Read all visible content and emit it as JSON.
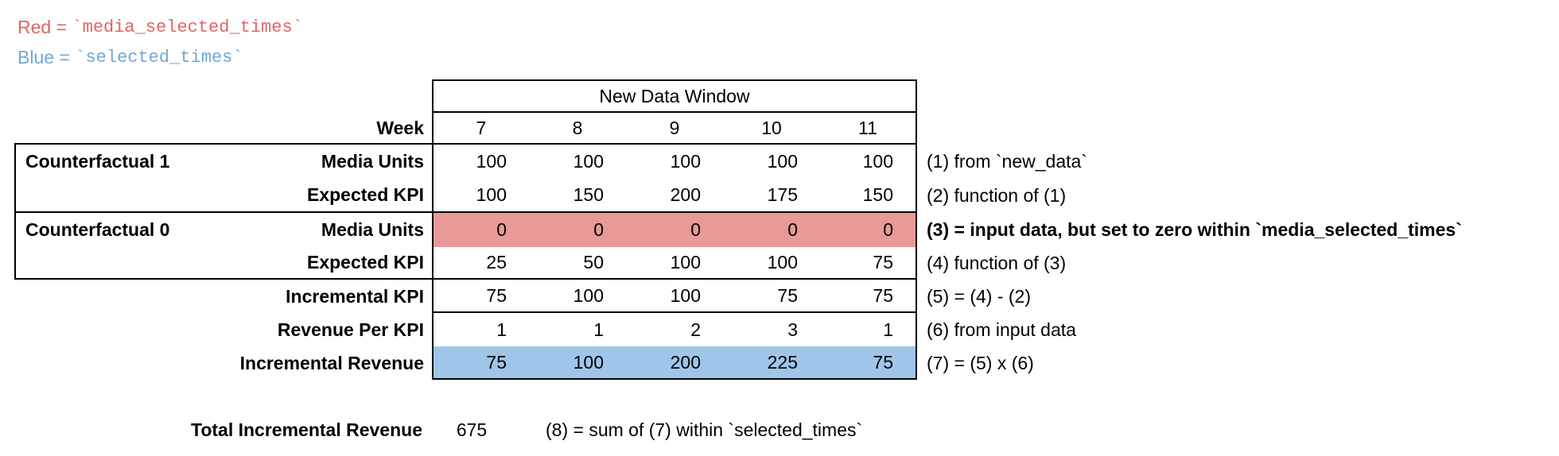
{
  "legend": {
    "red": {
      "name": "Red",
      "equals": " = ",
      "code": "`media_selected_times`"
    },
    "blue": {
      "name": "Blue",
      "equals": " = ",
      "code": "`selected_times`"
    }
  },
  "colors": {
    "red_row_bg": "#ea9999",
    "blue_row_bg": "#9fc5e8",
    "red_text": "#e06666",
    "blue_text": "#6fa8dc"
  },
  "table": {
    "window_header": "New Data Window",
    "week_row": {
      "label": "Week",
      "weeks": [
        "7",
        "8",
        "9",
        "10",
        "11"
      ]
    },
    "rows": [
      {
        "group": "Counterfactual 1",
        "label": "Media Units",
        "values": [
          "100",
          "100",
          "100",
          "100",
          "100"
        ],
        "note": "(1) from `new_data`"
      },
      {
        "group": "",
        "label": "Expected KPI",
        "values": [
          "100",
          "150",
          "200",
          "175",
          "150"
        ],
        "note": "(2) function of (1)"
      },
      {
        "group": "Counterfactual 0",
        "label": "Media Units",
        "values": [
          "0",
          "0",
          "0",
          "0",
          "0"
        ],
        "note": "(3) = input data, but set to zero within `media_selected_times`"
      },
      {
        "group": "",
        "label": "Expected KPI",
        "values": [
          "25",
          "50",
          "100",
          "100",
          "75"
        ],
        "note": "(4) function of (3)"
      },
      {
        "group": "",
        "label": "Incremental KPI",
        "values": [
          "75",
          "100",
          "100",
          "75",
          "75"
        ],
        "note": "(5) = (4) - (2)"
      },
      {
        "group": "",
        "label": "Revenue Per KPI",
        "values": [
          "1",
          "1",
          "2",
          "3",
          "1"
        ],
        "note": "(6) from input data"
      },
      {
        "group": "",
        "label": "Incremental Revenue",
        "values": [
          "75",
          "100",
          "200",
          "225",
          "75"
        ],
        "note": "(7) = (5) x (6)"
      }
    ]
  },
  "total": {
    "label": "Total Incremental Revenue",
    "value": "675",
    "note": "(8) = sum of (7) within `selected_times`"
  }
}
